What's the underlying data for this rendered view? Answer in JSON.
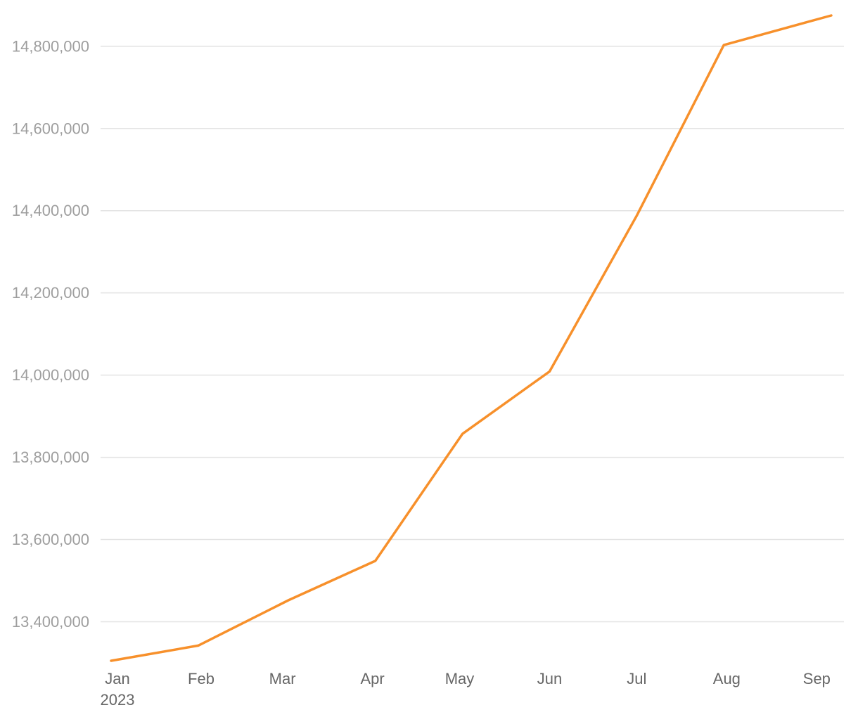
{
  "chart_data": {
    "type": "line",
    "title": "",
    "xlabel": "",
    "ylabel": "",
    "x": [
      "2023-01-01",
      "2023-01-31",
      "2023-03-03",
      "2023-04-02",
      "2023-05-02",
      "2023-06-01",
      "2023-07-01",
      "2023-07-31",
      "2023-09-06"
    ],
    "series": [
      {
        "values": [
          13305000,
          13342000,
          13452000,
          13548000,
          13857000,
          14009000,
          14388000,
          14803000,
          14875000
        ],
        "color": "#f7902b"
      }
    ],
    "ylim": [
      13305000,
      14875000
    ],
    "yticks": [
      13400000,
      13600000,
      13800000,
      14000000,
      14200000,
      14400000,
      14600000,
      14800000
    ],
    "ytick_labels": [
      "13,400,000",
      "13,600,000",
      "13,800,000",
      "14,000,000",
      "14,200,000",
      "14,400,000",
      "14,600,000",
      "14,800,000"
    ],
    "xticks": [
      "2023-01-01",
      "2023-02-01",
      "2023-03-01",
      "2023-04-01",
      "2023-05-01",
      "2023-06-01",
      "2023-07-01",
      "2023-08-01",
      "2023-09-01"
    ],
    "xtick_labels": [
      "Jan",
      "Feb",
      "Mar",
      "Apr",
      "May",
      "Jun",
      "Jul",
      "Aug",
      "Sep"
    ],
    "xtick_sublabel": "2023",
    "grid": true,
    "legend": "none"
  }
}
